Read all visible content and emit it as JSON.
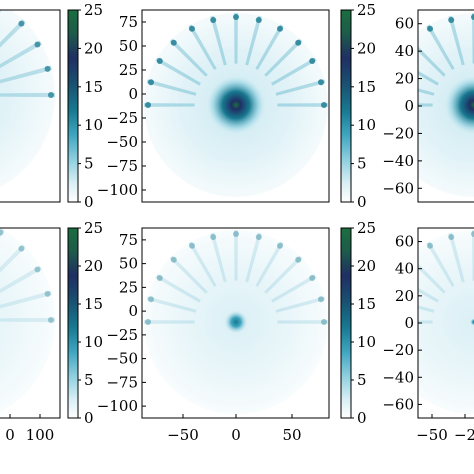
{
  "figure": {
    "colors": {
      "colormap": [
        "#ffffff",
        "#d8eef4",
        "#8fcfdf",
        "#3fa5bf",
        "#17788f",
        "#1a4f6f",
        "#1f2f63",
        "#1d5c4a",
        "#1b6e3f"
      ],
      "frame": "#000000"
    }
  },
  "chart_data": [
    {
      "type": "heatmap",
      "position": "top-left (cropped)",
      "pattern": "fan of 13 radial rays over upper half, faint lower half",
      "ray_intensity": 0.9,
      "center_intensity": 0,
      "colorbar": {
        "min": 0,
        "max": 25,
        "ticks": [
          "0",
          "5",
          "10",
          "15",
          "20",
          "25"
        ]
      },
      "xlim": [
        null,
        null
      ],
      "ylim": [
        null,
        null
      ],
      "x_ticks": [],
      "y_ticks": []
    },
    {
      "type": "heatmap",
      "position": "top-center",
      "pattern": "fan of 13 radial rays with strong central peak",
      "ray_intensity": 1.0,
      "center_intensity": 25,
      "colorbar": {
        "min": 0,
        "max": 25,
        "ticks": [
          "0",
          "5",
          "10",
          "15",
          "20",
          "25"
        ]
      },
      "xlim": [
        -80,
        80
      ],
      "ylim": [
        -105,
        80
      ],
      "x_ticks": [],
      "y_ticks": [
        "75",
        "50",
        "25",
        "0",
        "−25",
        "−50",
        "−75",
        "−100"
      ]
    },
    {
      "type": "heatmap",
      "position": "top-right (cropped)",
      "pattern": "fan of radial rays with central peak",
      "ray_intensity": 1.0,
      "center_intensity": 25,
      "colorbar": null,
      "xlim": [
        -60,
        null
      ],
      "ylim": [
        -60,
        60
      ],
      "x_ticks": [],
      "y_ticks": [
        "60",
        "40",
        "20",
        "0",
        "−20",
        "−40",
        "−60"
      ]
    },
    {
      "type": "heatmap",
      "position": "bottom-left (cropped)",
      "pattern": "faint fan of radial rays",
      "ray_intensity": 0.45,
      "center_intensity": 0,
      "colorbar": {
        "min": 0,
        "max": 25,
        "ticks": [
          "0",
          "5",
          "10",
          "15",
          "20",
          "25"
        ]
      },
      "xlim": [
        null,
        120
      ],
      "ylim": [
        null,
        null
      ],
      "x_ticks": [
        "0",
        "100"
      ],
      "y_ticks": []
    },
    {
      "type": "heatmap",
      "position": "bottom-center",
      "pattern": "faint fan of radial rays with small central spot",
      "ray_intensity": 0.5,
      "center_intensity": 9,
      "colorbar": {
        "min": 0,
        "max": 25,
        "ticks": [
          "0",
          "5",
          "10",
          "15",
          "20",
          "25"
        ]
      },
      "xlim": [
        -80,
        80
      ],
      "ylim": [
        -105,
        80
      ],
      "x_ticks": [
        "−50",
        "0",
        "50"
      ],
      "y_ticks": [
        "75",
        "50",
        "25",
        "0",
        "−25",
        "−50",
        "−75",
        "−100"
      ]
    },
    {
      "type": "heatmap",
      "position": "bottom-right (cropped)",
      "pattern": "faint fan of radial rays",
      "ray_intensity": 0.5,
      "center_intensity": 3,
      "colorbar": null,
      "xlim": [
        -60,
        null
      ],
      "ylim": [
        -60,
        60
      ],
      "x_ticks": [
        "−50",
        "−2"
      ],
      "y_ticks": [
        "60",
        "40",
        "20",
        "0",
        "−20",
        "−40",
        "−60"
      ]
    }
  ]
}
